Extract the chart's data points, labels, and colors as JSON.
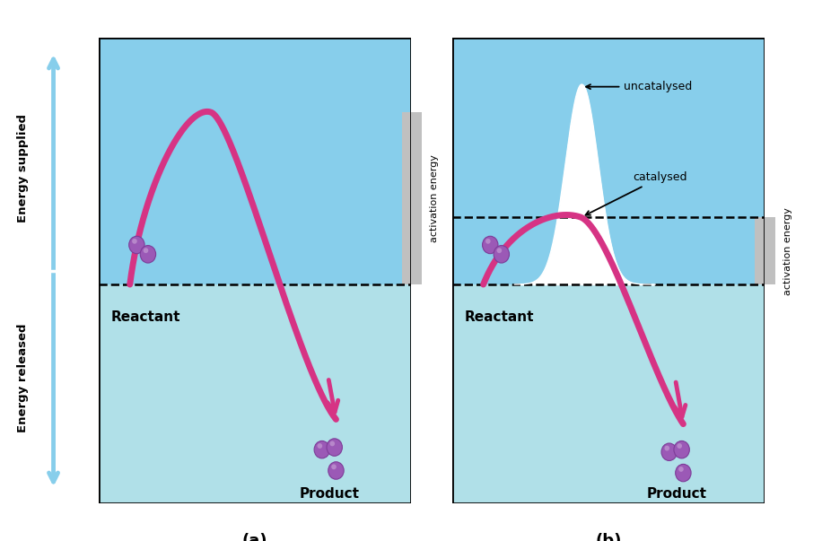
{
  "bg_color": "#ffffff",
  "panel_bg_upper": "#87CEEB",
  "panel_bg_lower": "#b0e0e8",
  "curve_color": "#d63384",
  "white_peak_color": "#ffffff",
  "dashed_color": "#000000",
  "text_color": "#000000",
  "label_a": "(a)",
  "label_b": "(b)",
  "reactant_label": "Reactant",
  "product_label": "Product",
  "uncatalysed_label": "uncatalysed",
  "catalysed_label": "catalysed",
  "energy_supplied_label": "Energy supplied",
  "energy_released_label": "Energy released",
  "activation_energy_label": "activation energy",
  "fig_width": 9.16,
  "fig_height": 6.03,
  "ball_color_main": "#9b59b6",
  "ball_color_light": "#c39bd3",
  "arrow_color": "#87CEEB",
  "gray_bar_color": "#c0c0c0"
}
